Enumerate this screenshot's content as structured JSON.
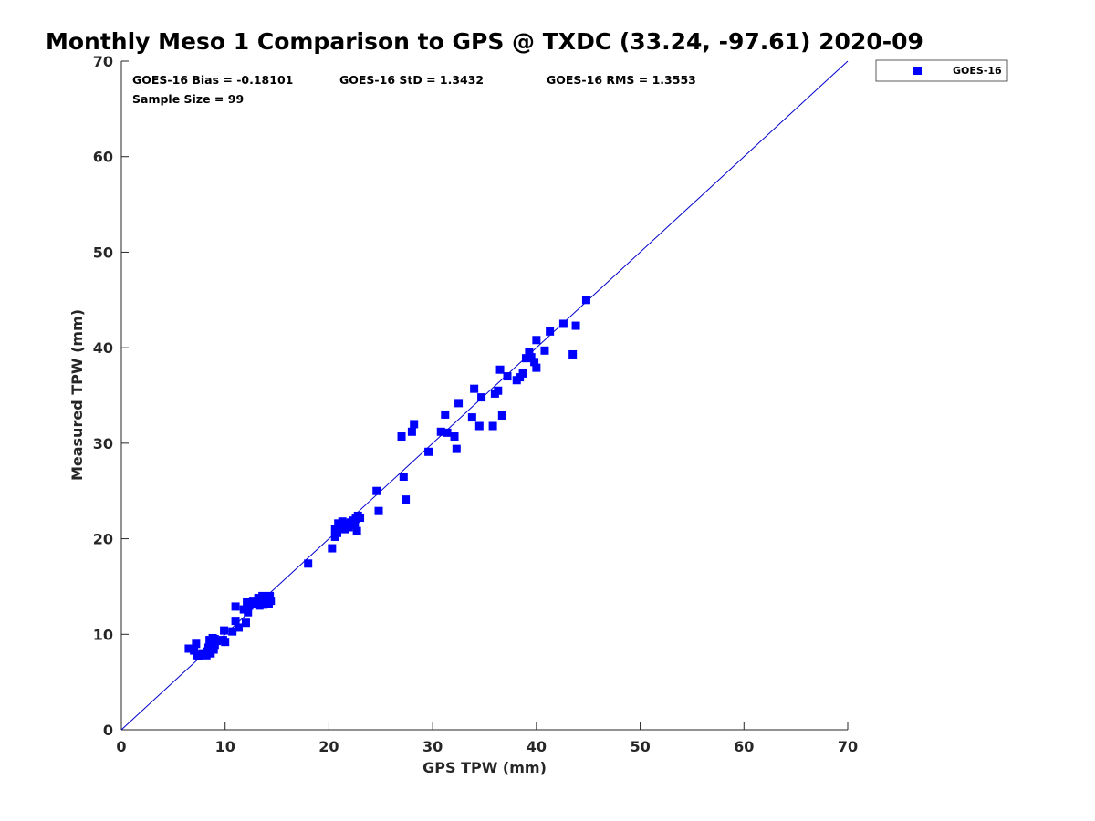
{
  "chart_data": {
    "type": "scatter",
    "title": "Monthly Meso 1 Comparison to GPS @ TXDC (33.24, -97.61) 2020-09",
    "xlabel": "GPS TPW (mm)",
    "ylabel": "Measured TPW (mm)",
    "xlim": [
      0,
      70
    ],
    "ylim": [
      0,
      70
    ],
    "xticks": [
      0,
      10,
      20,
      30,
      40,
      50,
      60,
      70
    ],
    "yticks": [
      0,
      10,
      20,
      30,
      40,
      50,
      60,
      70
    ],
    "grid": false,
    "legend_position": "outside-top-right",
    "reference_line": {
      "x": [
        0,
        70
      ],
      "y": [
        0,
        70
      ],
      "color": "#0000cc"
    },
    "stats": {
      "bias": "GOES-16 Bias = -0.18101",
      "std": "GOES-16 StD = 1.3432",
      "rms": "GOES-16 RMS = 1.3553",
      "sample_size": "Sample Size = 99"
    },
    "series": [
      {
        "name": "GOES-16",
        "color": "#0000ff",
        "marker": "square",
        "points": [
          [
            6.5,
            8.5
          ],
          [
            7.0,
            8.3
          ],
          [
            7.2,
            9.0
          ],
          [
            7.3,
            7.8
          ],
          [
            7.5,
            7.7
          ],
          [
            7.8,
            8.0
          ],
          [
            8.0,
            8.0
          ],
          [
            8.2,
            7.8
          ],
          [
            8.3,
            8.2
          ],
          [
            8.4,
            8.6
          ],
          [
            8.5,
            9.4
          ],
          [
            8.6,
            8.0
          ],
          [
            8.8,
            9.6
          ],
          [
            8.9,
            8.4
          ],
          [
            9.0,
            9.5
          ],
          [
            9.0,
            8.9
          ],
          [
            9.8,
            9.4
          ],
          [
            9.9,
            10.4
          ],
          [
            10.0,
            9.2
          ],
          [
            10.7,
            10.3
          ],
          [
            11.0,
            11.4
          ],
          [
            11.0,
            12.9
          ],
          [
            11.3,
            10.7
          ],
          [
            12.0,
            11.2
          ],
          [
            12.1,
            13.4
          ],
          [
            12.2,
            12.3
          ],
          [
            12.3,
            13.0
          ],
          [
            12.5,
            13.3
          ],
          [
            12.7,
            13.5
          ],
          [
            13.0,
            13.2
          ],
          [
            13.2,
            13.8
          ],
          [
            13.3,
            13.0
          ],
          [
            13.5,
            13.4
          ],
          [
            13.6,
            14.0
          ],
          [
            13.7,
            13.1
          ],
          [
            14.0,
            13.6
          ],
          [
            14.2,
            13.2
          ],
          [
            14.3,
            14.0
          ],
          [
            14.4,
            13.5
          ],
          [
            18.0,
            17.4
          ],
          [
            20.3,
            19.0
          ],
          [
            20.6,
            20.2
          ],
          [
            20.6,
            21.0
          ],
          [
            20.8,
            20.6
          ],
          [
            20.9,
            21.6
          ],
          [
            21.0,
            21.3
          ],
          [
            21.3,
            21.8
          ],
          [
            21.5,
            21.0
          ],
          [
            21.7,
            21.6
          ],
          [
            21.9,
            21.2
          ],
          [
            22.1,
            21.7
          ],
          [
            22.3,
            21.9
          ],
          [
            22.5,
            21.4
          ],
          [
            22.6,
            22.1
          ],
          [
            22.7,
            20.8
          ],
          [
            22.8,
            22.4
          ],
          [
            24.6,
            25.0
          ],
          [
            24.8,
            22.9
          ],
          [
            27.0,
            30.7
          ],
          [
            27.2,
            26.5
          ],
          [
            27.4,
            24.1
          ],
          [
            28.0,
            31.2
          ],
          [
            28.2,
            32.0
          ],
          [
            29.6,
            29.1
          ],
          [
            31.2,
            33.0
          ],
          [
            31.4,
            31.1
          ],
          [
            32.1,
            30.7
          ],
          [
            32.3,
            29.4
          ],
          [
            32.5,
            34.2
          ],
          [
            33.8,
            32.7
          ],
          [
            34.0,
            35.7
          ],
          [
            34.5,
            31.8
          ],
          [
            34.7,
            34.8
          ],
          [
            35.8,
            31.8
          ],
          [
            36.3,
            35.5
          ],
          [
            36.5,
            37.7
          ],
          [
            36.7,
            32.9
          ],
          [
            37.2,
            37.0
          ],
          [
            38.1,
            36.6
          ],
          [
            38.4,
            36.9
          ],
          [
            38.7,
            37.3
          ],
          [
            39.0,
            38.9
          ],
          [
            39.3,
            39.5
          ],
          [
            39.5,
            39.0
          ],
          [
            39.8,
            38.5
          ],
          [
            40.0,
            37.9
          ],
          [
            40.0,
            40.8
          ],
          [
            40.8,
            39.7
          ],
          [
            41.3,
            41.7
          ],
          [
            42.6,
            42.5
          ],
          [
            43.5,
            39.3
          ],
          [
            43.8,
            42.3
          ],
          [
            44.8,
            45.0
          ],
          [
            36.0,
            35.2
          ],
          [
            30.8,
            31.2
          ],
          [
            23.0,
            22.2
          ],
          [
            11.8,
            12.6
          ],
          [
            9.2,
            9.3
          ],
          [
            13.8,
            13.9
          ]
        ]
      }
    ]
  }
}
